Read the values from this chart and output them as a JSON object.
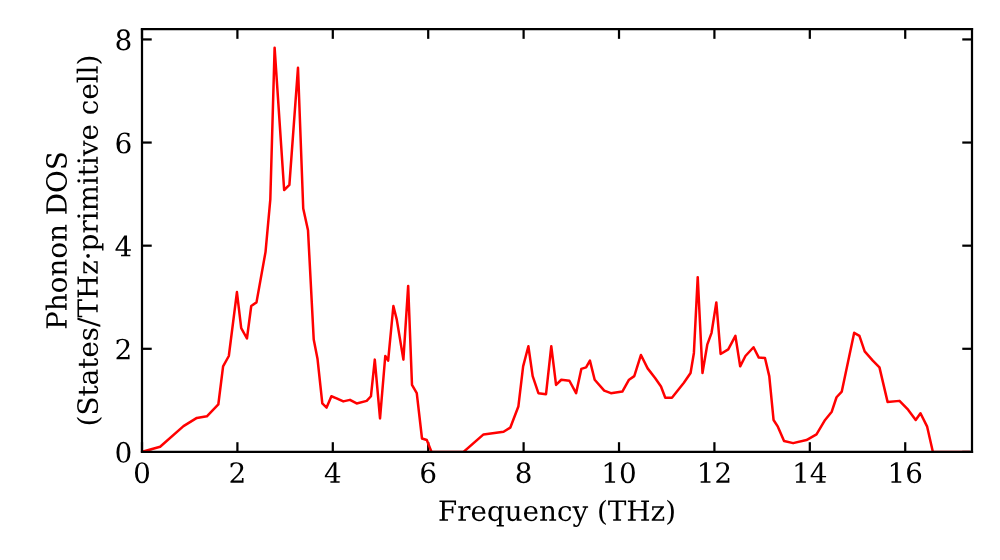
{
  "chart_data": {
    "type": "line",
    "xlabel": "Frequency (THz)",
    "ylabel": "Phonon DOS\n(States/THz·primitive cell)",
    "xlim": [
      0,
      17.4
    ],
    "ylim": [
      0,
      8.2
    ],
    "xticks": [
      0,
      2,
      4,
      6,
      8,
      10,
      12,
      14,
      16
    ],
    "yticks": [
      0,
      2,
      4,
      6,
      8
    ],
    "grid": false,
    "marker": "none",
    "line_style": "solid",
    "series": [
      {
        "color": "#ff0000",
        "x": [
          0,
          0.38,
          0.87,
          1.15,
          1.36,
          1.6,
          1.7,
          1.82,
          1.99,
          2.08,
          2.2,
          2.29,
          2.4,
          2.59,
          2.69,
          2.78,
          2.98,
          3.09,
          3.27,
          3.38,
          3.48,
          3.6,
          3.68,
          3.78,
          3.87,
          3.97,
          4.08,
          4.22,
          4.36,
          4.5,
          4.71,
          4.8,
          4.88,
          4.99,
          5.1,
          5.16,
          5.27,
          5.34,
          5.48,
          5.58,
          5.66,
          5.76,
          5.87,
          5.97,
          6.07,
          6.74,
          7.16,
          7.58,
          7.72,
          7.89,
          7.99,
          8.1,
          8.19,
          8.31,
          8.47,
          8.58,
          8.68,
          8.79,
          8.96,
          9.1,
          9.21,
          9.31,
          9.39,
          9.49,
          9.69,
          9.83,
          10.07,
          10.21,
          10.32,
          10.46,
          10.6,
          10.76,
          10.88,
          10.97,
          11.11,
          11.36,
          11.5,
          11.57,
          11.65,
          11.75,
          11.85,
          11.94,
          12.04,
          12.13,
          12.29,
          12.44,
          12.54,
          12.65,
          12.82,
          12.93,
          13.06,
          13.15,
          13.24,
          13.33,
          13.46,
          13.65,
          13.93,
          14.14,
          14.32,
          14.46,
          14.56,
          14.67,
          14.93,
          15.04,
          15.15,
          15.32,
          15.46,
          15.63,
          15.88,
          16.06,
          16.22,
          16.32,
          16.46,
          16.58,
          17.33
        ],
        "values": [
          0,
          0.1,
          0.5,
          0.66,
          0.69,
          0.92,
          1.66,
          1.86,
          3.1,
          2.4,
          2.2,
          2.83,
          2.9,
          3.88,
          4.9,
          7.84,
          5.08,
          5.18,
          7.45,
          4.72,
          4.3,
          2.18,
          1.8,
          0.94,
          0.86,
          1.08,
          1.04,
          0.98,
          1.01,
          0.94,
          0.99,
          1.08,
          1.79,
          0.65,
          1.86,
          1.77,
          2.83,
          2.57,
          1.79,
          3.22,
          1.3,
          1.14,
          0.26,
          0.23,
          0,
          0,
          0.34,
          0.39,
          0.47,
          0.88,
          1.66,
          2.05,
          1.47,
          1.14,
          1.12,
          2.05,
          1.3,
          1.4,
          1.38,
          1.14,
          1.61,
          1.64,
          1.77,
          1.4,
          1.19,
          1.14,
          1.17,
          1.4,
          1.47,
          1.88,
          1.62,
          1.43,
          1.27,
          1.05,
          1.05,
          1.34,
          1.53,
          1.92,
          3.39,
          1.53,
          2.08,
          2.31,
          2.9,
          1.9,
          1.99,
          2.25,
          1.66,
          1.86,
          2.03,
          1.83,
          1.82,
          1.47,
          0.62,
          0.49,
          0.21,
          0.17,
          0.23,
          0.34,
          0.62,
          0.78,
          1.06,
          1.17,
          2.31,
          2.25,
          1.95,
          1.77,
          1.64,
          0.97,
          0.99,
          0.82,
          0.62,
          0.75,
          0.49,
          0,
          0
        ]
      }
    ]
  }
}
